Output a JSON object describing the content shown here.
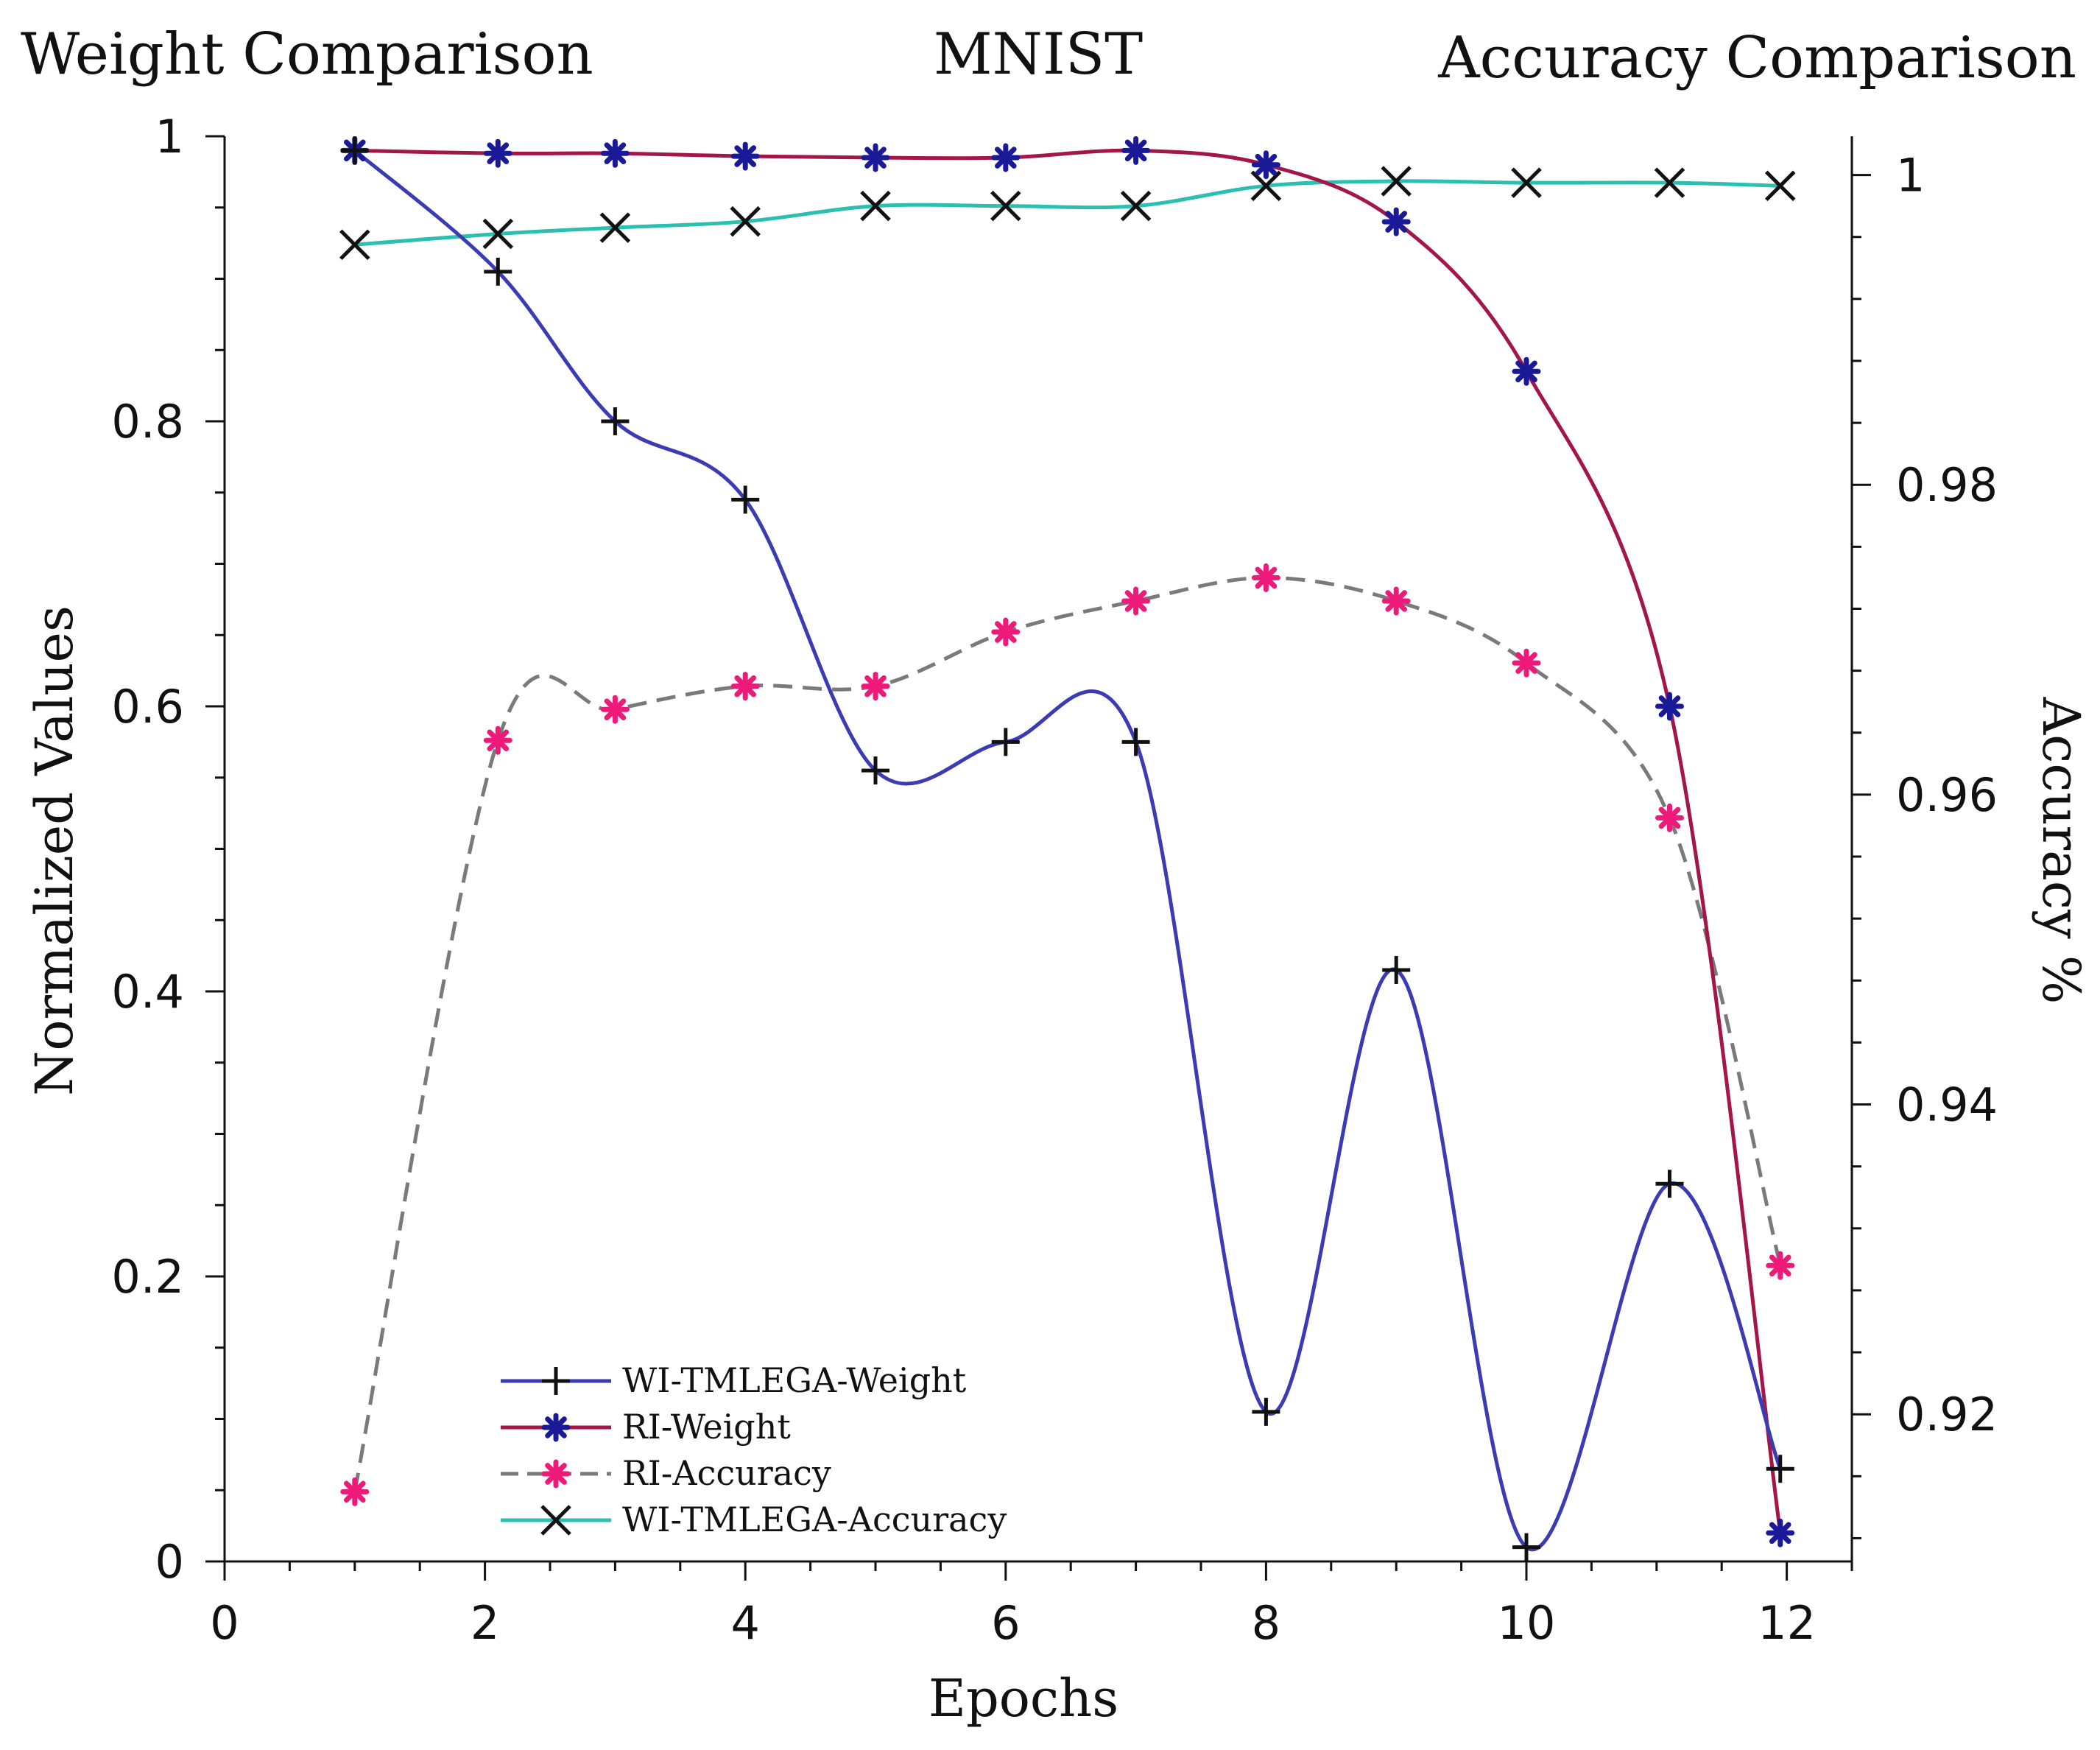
{
  "chart_data": {
    "type": "line",
    "title": "MNIST",
    "left_title": "Weight Comparison",
    "right_title": "Accuracy Comparison",
    "xlabel": "Epochs",
    "ylabel": "Normalized Values",
    "y2label": "Accuracy %",
    "xlim": [
      0,
      12.5
    ],
    "ylim": [
      0,
      1.0
    ],
    "y2lim": [
      0.9105,
      1.0025
    ],
    "x_ticks": [
      "0",
      "2",
      "4",
      "6",
      "8",
      "10",
      "12"
    ],
    "y_ticks": [
      "0",
      "0.2",
      "0.4",
      "0.6",
      "0.8",
      "1"
    ],
    "y2_ticks": [
      "0.92",
      "0.94",
      "0.96",
      "0.98",
      "1"
    ],
    "grid": false,
    "legend_position": "bottom-left",
    "series": [
      {
        "name": "WI-TMLEGA-Weight",
        "axis": "left",
        "color": "#3b3bb3",
        "line_style": "solid",
        "marker": "plus",
        "marker_color": "#111111",
        "x": [
          1,
          2.1,
          3,
          4,
          5,
          6,
          7,
          8,
          9,
          10,
          11.1,
          11.95
        ],
        "values": [
          0.99,
          0.905,
          0.8,
          0.745,
          0.555,
          0.575,
          0.575,
          0.105,
          0.415,
          0.01,
          0.265,
          0.065
        ]
      },
      {
        "name": "RI-Weight",
        "axis": "left",
        "color": "#a3164a",
        "line_style": "solid",
        "marker": "asterisk",
        "marker_color": "#1a1a99",
        "x": [
          1,
          2.1,
          3,
          4,
          5,
          6,
          7,
          8,
          9,
          10,
          11.1,
          11.95
        ],
        "values": [
          0.99,
          0.988,
          0.988,
          0.986,
          0.985,
          0.985,
          0.99,
          0.98,
          0.94,
          0.835,
          0.6,
          0.02
        ]
      },
      {
        "name": "RI-Accuracy",
        "axis": "right",
        "color": "#7a7a7a",
        "line_style": "dashed",
        "marker": "asterisk",
        "marker_color": "#ee1a7a",
        "x": [
          1,
          2.1,
          3,
          4,
          5,
          6,
          7,
          8,
          9,
          10,
          11.1,
          11.95
        ],
        "values": [
          0.915,
          0.9635,
          0.9655,
          0.967,
          0.967,
          0.9705,
          0.9725,
          0.974,
          0.9725,
          0.9685,
          0.9585,
          0.9296
        ]
      },
      {
        "name": "WI-TMLEGA-Accuracy",
        "axis": "right",
        "color": "#2bbfb0",
        "line_style": "solid",
        "marker": "x",
        "marker_color": "#111111",
        "x": [
          1,
          2.1,
          3,
          4,
          5,
          6,
          7,
          8,
          9,
          10,
          11.1,
          11.95
        ],
        "values": [
          0.9955,
          0.9962,
          0.9966,
          0.997,
          0.998,
          0.998,
          0.998,
          0.9993,
          0.9996,
          0.9995,
          0.9995,
          0.9993
        ]
      }
    ]
  }
}
